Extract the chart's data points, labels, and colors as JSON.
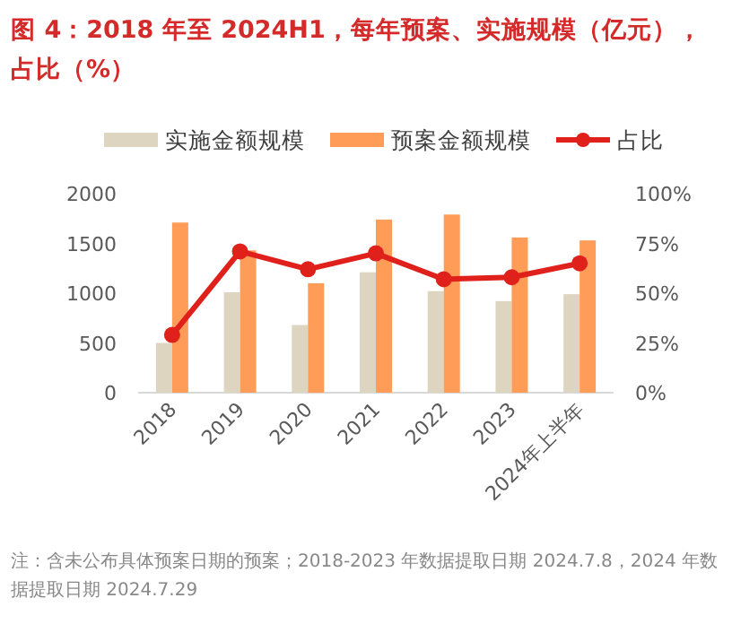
{
  "chart_data": {
    "type": "bar",
    "title": "图 4：2018 年至 2024H1，每年预案、实施规模（亿元），占比（%）",
    "categories": [
      "2018",
      "2019",
      "2020",
      "2021",
      "2022",
      "2023",
      "2024年上半年"
    ],
    "series": [
      {
        "name": "实施金额规模",
        "color": "#ddd5bf",
        "values": [
          500,
          1010,
          680,
          1210,
          1020,
          920,
          990
        ]
      },
      {
        "name": "预案金额规模",
        "color": "#ff9c57",
        "values": [
          1710,
          1430,
          1100,
          1740,
          1790,
          1560,
          1530
        ]
      },
      {
        "name": "占比",
        "type": "line",
        "axis": "y2",
        "color": "#e0201b",
        "marker": "circle",
        "values": [
          29,
          71,
          62,
          70,
          57,
          58,
          65
        ]
      }
    ],
    "ylim": [
      0,
      2000
    ],
    "yticks": [
      0,
      500,
      1000,
      1500,
      2000
    ],
    "y2lim": [
      0,
      100
    ],
    "y2ticks": [
      {
        "value": 0,
        "label": "0%"
      },
      {
        "value": 25,
        "label": "25%"
      },
      {
        "value": 50,
        "label": "50%"
      },
      {
        "value": 75,
        "label": "75%"
      },
      {
        "value": 100,
        "label": "100%"
      }
    ],
    "legend": "top",
    "grid": false,
    "annotations": [
      "注：含未公布具体预案日期的预案；2018-2023 年数据提取日期 2024.7.8，2024 年数据提取日期 2024.7.29"
    ]
  }
}
